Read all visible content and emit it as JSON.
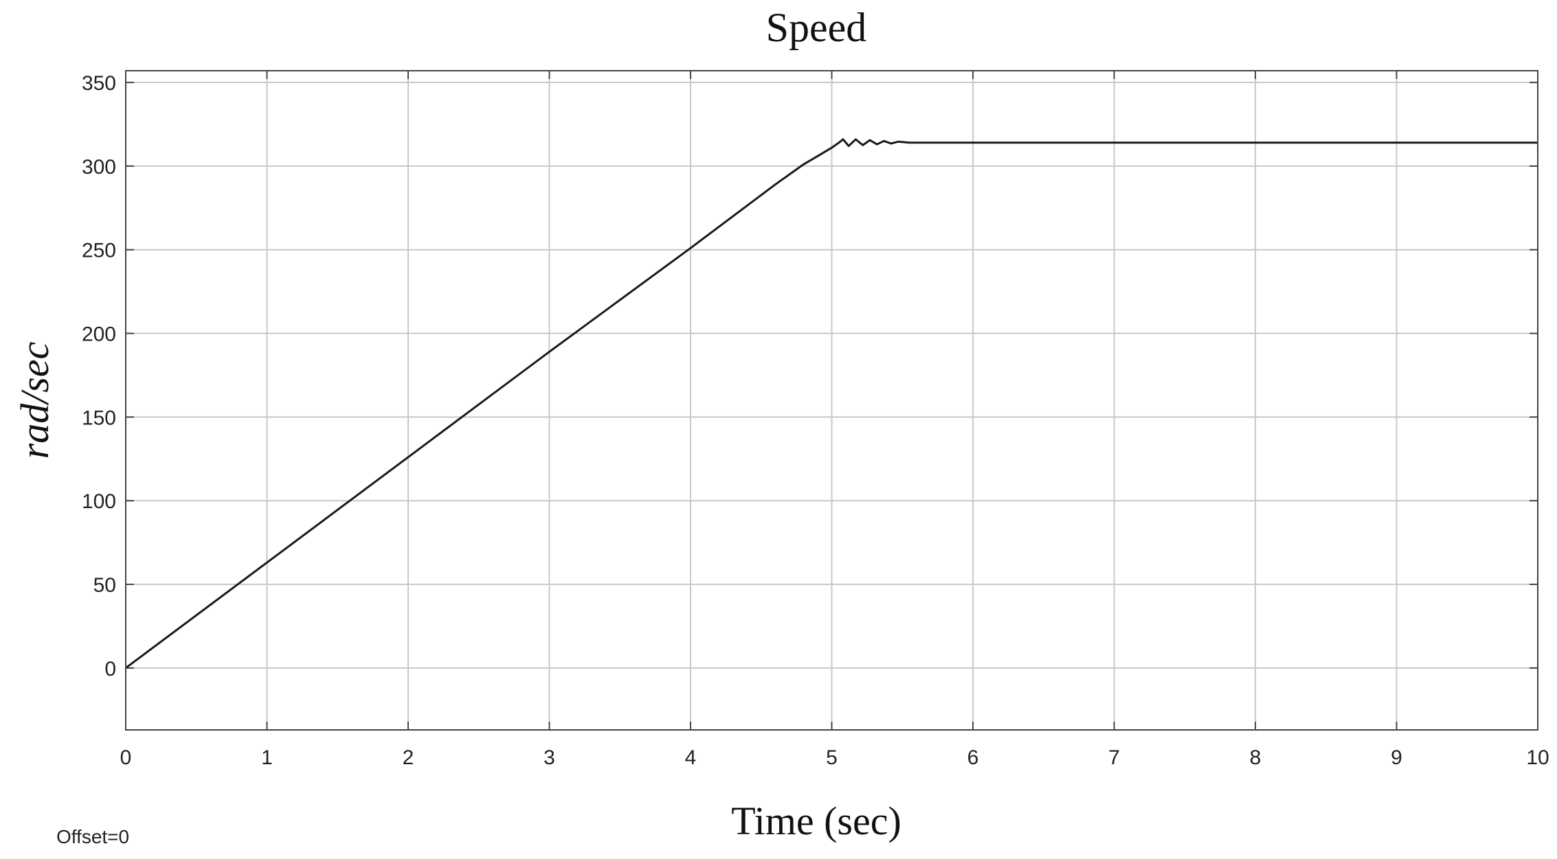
{
  "chart_data": {
    "type": "line",
    "title": "Speed",
    "xlabel": "Time (sec)",
    "ylabel": "rad/sec",
    "footnote": "Offset=0",
    "xlim": [
      0,
      10
    ],
    "ylim": [
      -37,
      357
    ],
    "x_ticks": [
      "0",
      "1",
      "2",
      "3",
      "4",
      "5",
      "6",
      "7",
      "8",
      "9",
      "10"
    ],
    "y_ticks": [
      "0",
      "50",
      "100",
      "150",
      "200",
      "250",
      "300",
      "350"
    ],
    "grid": true,
    "series": [
      {
        "color": "#1a1a1a",
        "x": [
          0,
          1,
          2,
          3,
          4,
          4.6,
          4.8,
          4.9,
          5.0,
          5.05,
          5.08,
          5.12,
          5.17,
          5.22,
          5.27,
          5.32,
          5.37,
          5.42,
          5.47,
          5.55,
          5.7,
          6,
          7,
          8,
          9,
          10
        ],
        "y": [
          0,
          63,
          126,
          189,
          251,
          289,
          301,
          306,
          311,
          314,
          316,
          312,
          316,
          312.5,
          315.5,
          313,
          315,
          313.5,
          314.6,
          314,
          314,
          314,
          314,
          314,
          314,
          314
        ]
      }
    ]
  }
}
